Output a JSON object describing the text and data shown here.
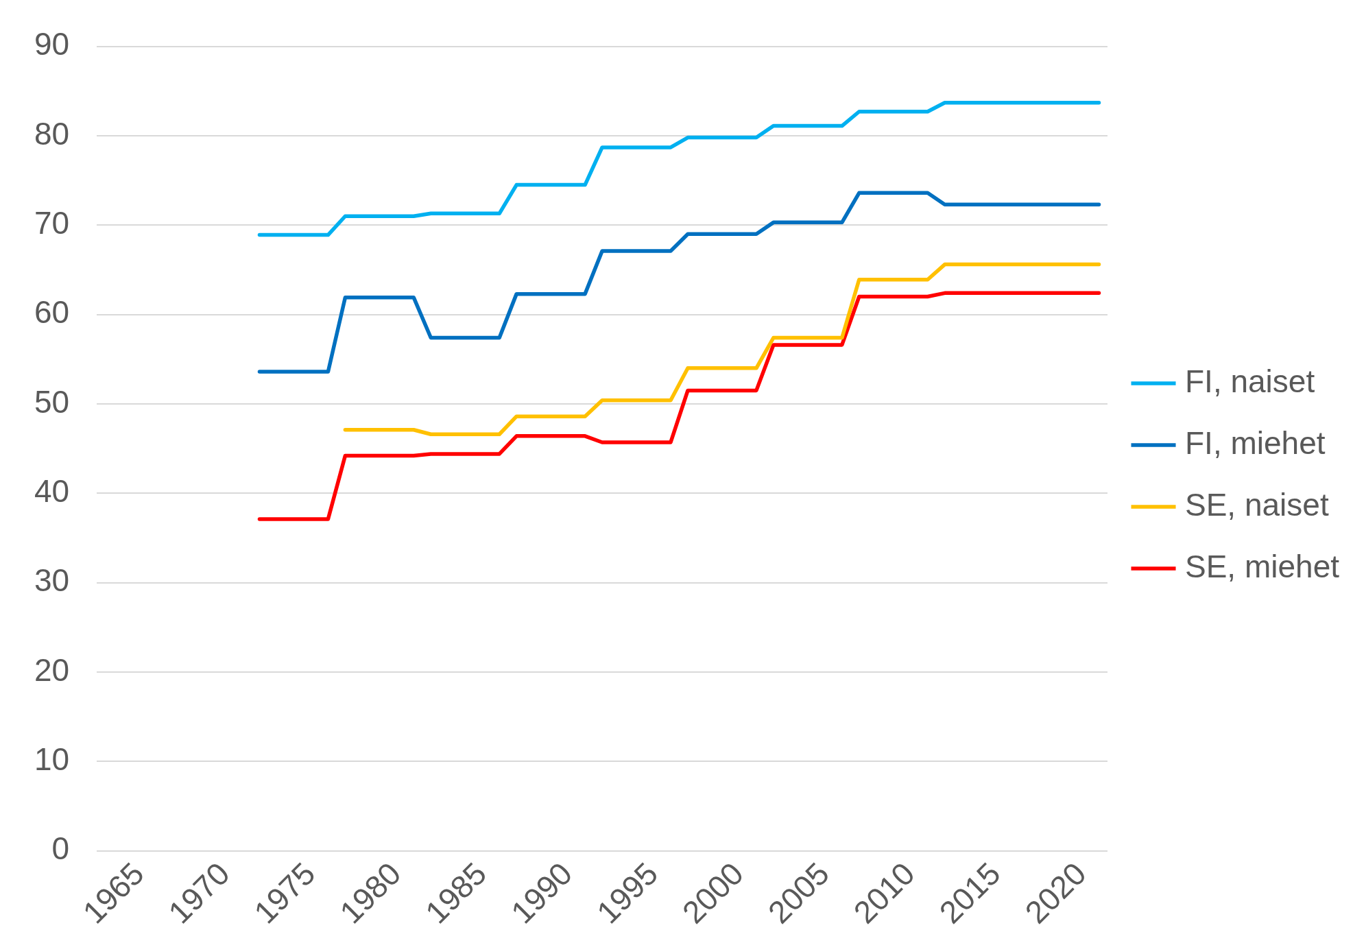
{
  "chart_data": {
    "type": "line",
    "categories": [
      null,
      null,
      "1965",
      null,
      null,
      null,
      null,
      "1970",
      null,
      null,
      null,
      null,
      "1975",
      null,
      null,
      null,
      null,
      "1980",
      null,
      null,
      null,
      null,
      "1985",
      null,
      null,
      null,
      null,
      "1990",
      null,
      null,
      null,
      null,
      "1995",
      null,
      null,
      null,
      null,
      "2000",
      null,
      null,
      null,
      null,
      "2005",
      null,
      null,
      null,
      null,
      "2010",
      null,
      null,
      null,
      null,
      "2015",
      null,
      null,
      null,
      null,
      "2020",
      null
    ],
    "series": [
      {
        "name": "FI, naiset",
        "color": "#00b0f0",
        "values": [
          null,
          null,
          null,
          null,
          null,
          null,
          null,
          null,
          null,
          68.9,
          68.9,
          68.9,
          68.9,
          68.9,
          71.0,
          71.0,
          71.0,
          71.0,
          71.0,
          71.3,
          71.3,
          71.3,
          71.3,
          71.3,
          74.5,
          74.5,
          74.5,
          74.5,
          74.5,
          78.7,
          78.7,
          78.7,
          78.7,
          78.7,
          79.8,
          79.8,
          79.8,
          79.8,
          79.8,
          81.1,
          81.1,
          81.1,
          81.1,
          81.1,
          82.7,
          82.7,
          82.7,
          82.7,
          82.7,
          83.7,
          83.7,
          83.7,
          83.7,
          83.7,
          83.7,
          83.7,
          83.7,
          83.7,
          83.7
        ]
      },
      {
        "name": "FI, miehet",
        "color": "#0070c0",
        "values": [
          null,
          null,
          null,
          null,
          null,
          null,
          null,
          null,
          null,
          53.6,
          53.6,
          53.6,
          53.6,
          53.6,
          61.9,
          61.9,
          61.9,
          61.9,
          61.9,
          57.4,
          57.4,
          57.4,
          57.4,
          57.4,
          62.3,
          62.3,
          62.3,
          62.3,
          62.3,
          67.1,
          67.1,
          67.1,
          67.1,
          67.1,
          69.0,
          69.0,
          69.0,
          69.0,
          69.0,
          70.3,
          70.3,
          70.3,
          70.3,
          70.3,
          73.6,
          73.6,
          73.6,
          73.6,
          73.6,
          72.3,
          72.3,
          72.3,
          72.3,
          72.3,
          72.3,
          72.3,
          72.3,
          72.3,
          72.3
        ]
      },
      {
        "name": "SE, naiset",
        "color": "#ffc000",
        "values": [
          null,
          null,
          null,
          null,
          null,
          null,
          null,
          null,
          null,
          null,
          null,
          null,
          null,
          null,
          47.1,
          47.1,
          47.1,
          47.1,
          47.1,
          46.6,
          46.6,
          46.6,
          46.6,
          46.6,
          48.6,
          48.6,
          48.6,
          48.6,
          48.6,
          50.4,
          50.4,
          50.4,
          50.4,
          50.4,
          54.0,
          54.0,
          54.0,
          54.0,
          54.0,
          57.4,
          57.4,
          57.4,
          57.4,
          57.4,
          63.9,
          63.9,
          63.9,
          63.9,
          63.9,
          65.6,
          65.6,
          65.6,
          65.6,
          65.6,
          65.6,
          65.6,
          65.6,
          65.6,
          65.6
        ]
      },
      {
        "name": "SE, miehet",
        "color": "#ff0000",
        "values": [
          null,
          null,
          null,
          null,
          null,
          null,
          null,
          null,
          null,
          37.1,
          37.1,
          37.1,
          37.1,
          37.1,
          44.2,
          44.2,
          44.2,
          44.2,
          44.2,
          44.4,
          44.4,
          44.4,
          44.4,
          44.4,
          46.4,
          46.4,
          46.4,
          46.4,
          46.4,
          45.7,
          45.7,
          45.7,
          45.7,
          45.7,
          51.5,
          51.5,
          51.5,
          51.5,
          51.5,
          56.6,
          56.6,
          56.6,
          56.6,
          56.6,
          62.0,
          62.0,
          62.0,
          62.0,
          62.0,
          62.4,
          62.4,
          62.4,
          62.4,
          62.4,
          62.4,
          62.4,
          62.4,
          62.4,
          62.4
        ]
      }
    ],
    "ylim": [
      0,
      90
    ],
    "yticks": [
      0,
      10,
      20,
      30,
      40,
      50,
      60,
      70,
      80,
      90
    ],
    "grid": "y",
    "legend": "right",
    "marker": "none",
    "line_style": "solid"
  }
}
